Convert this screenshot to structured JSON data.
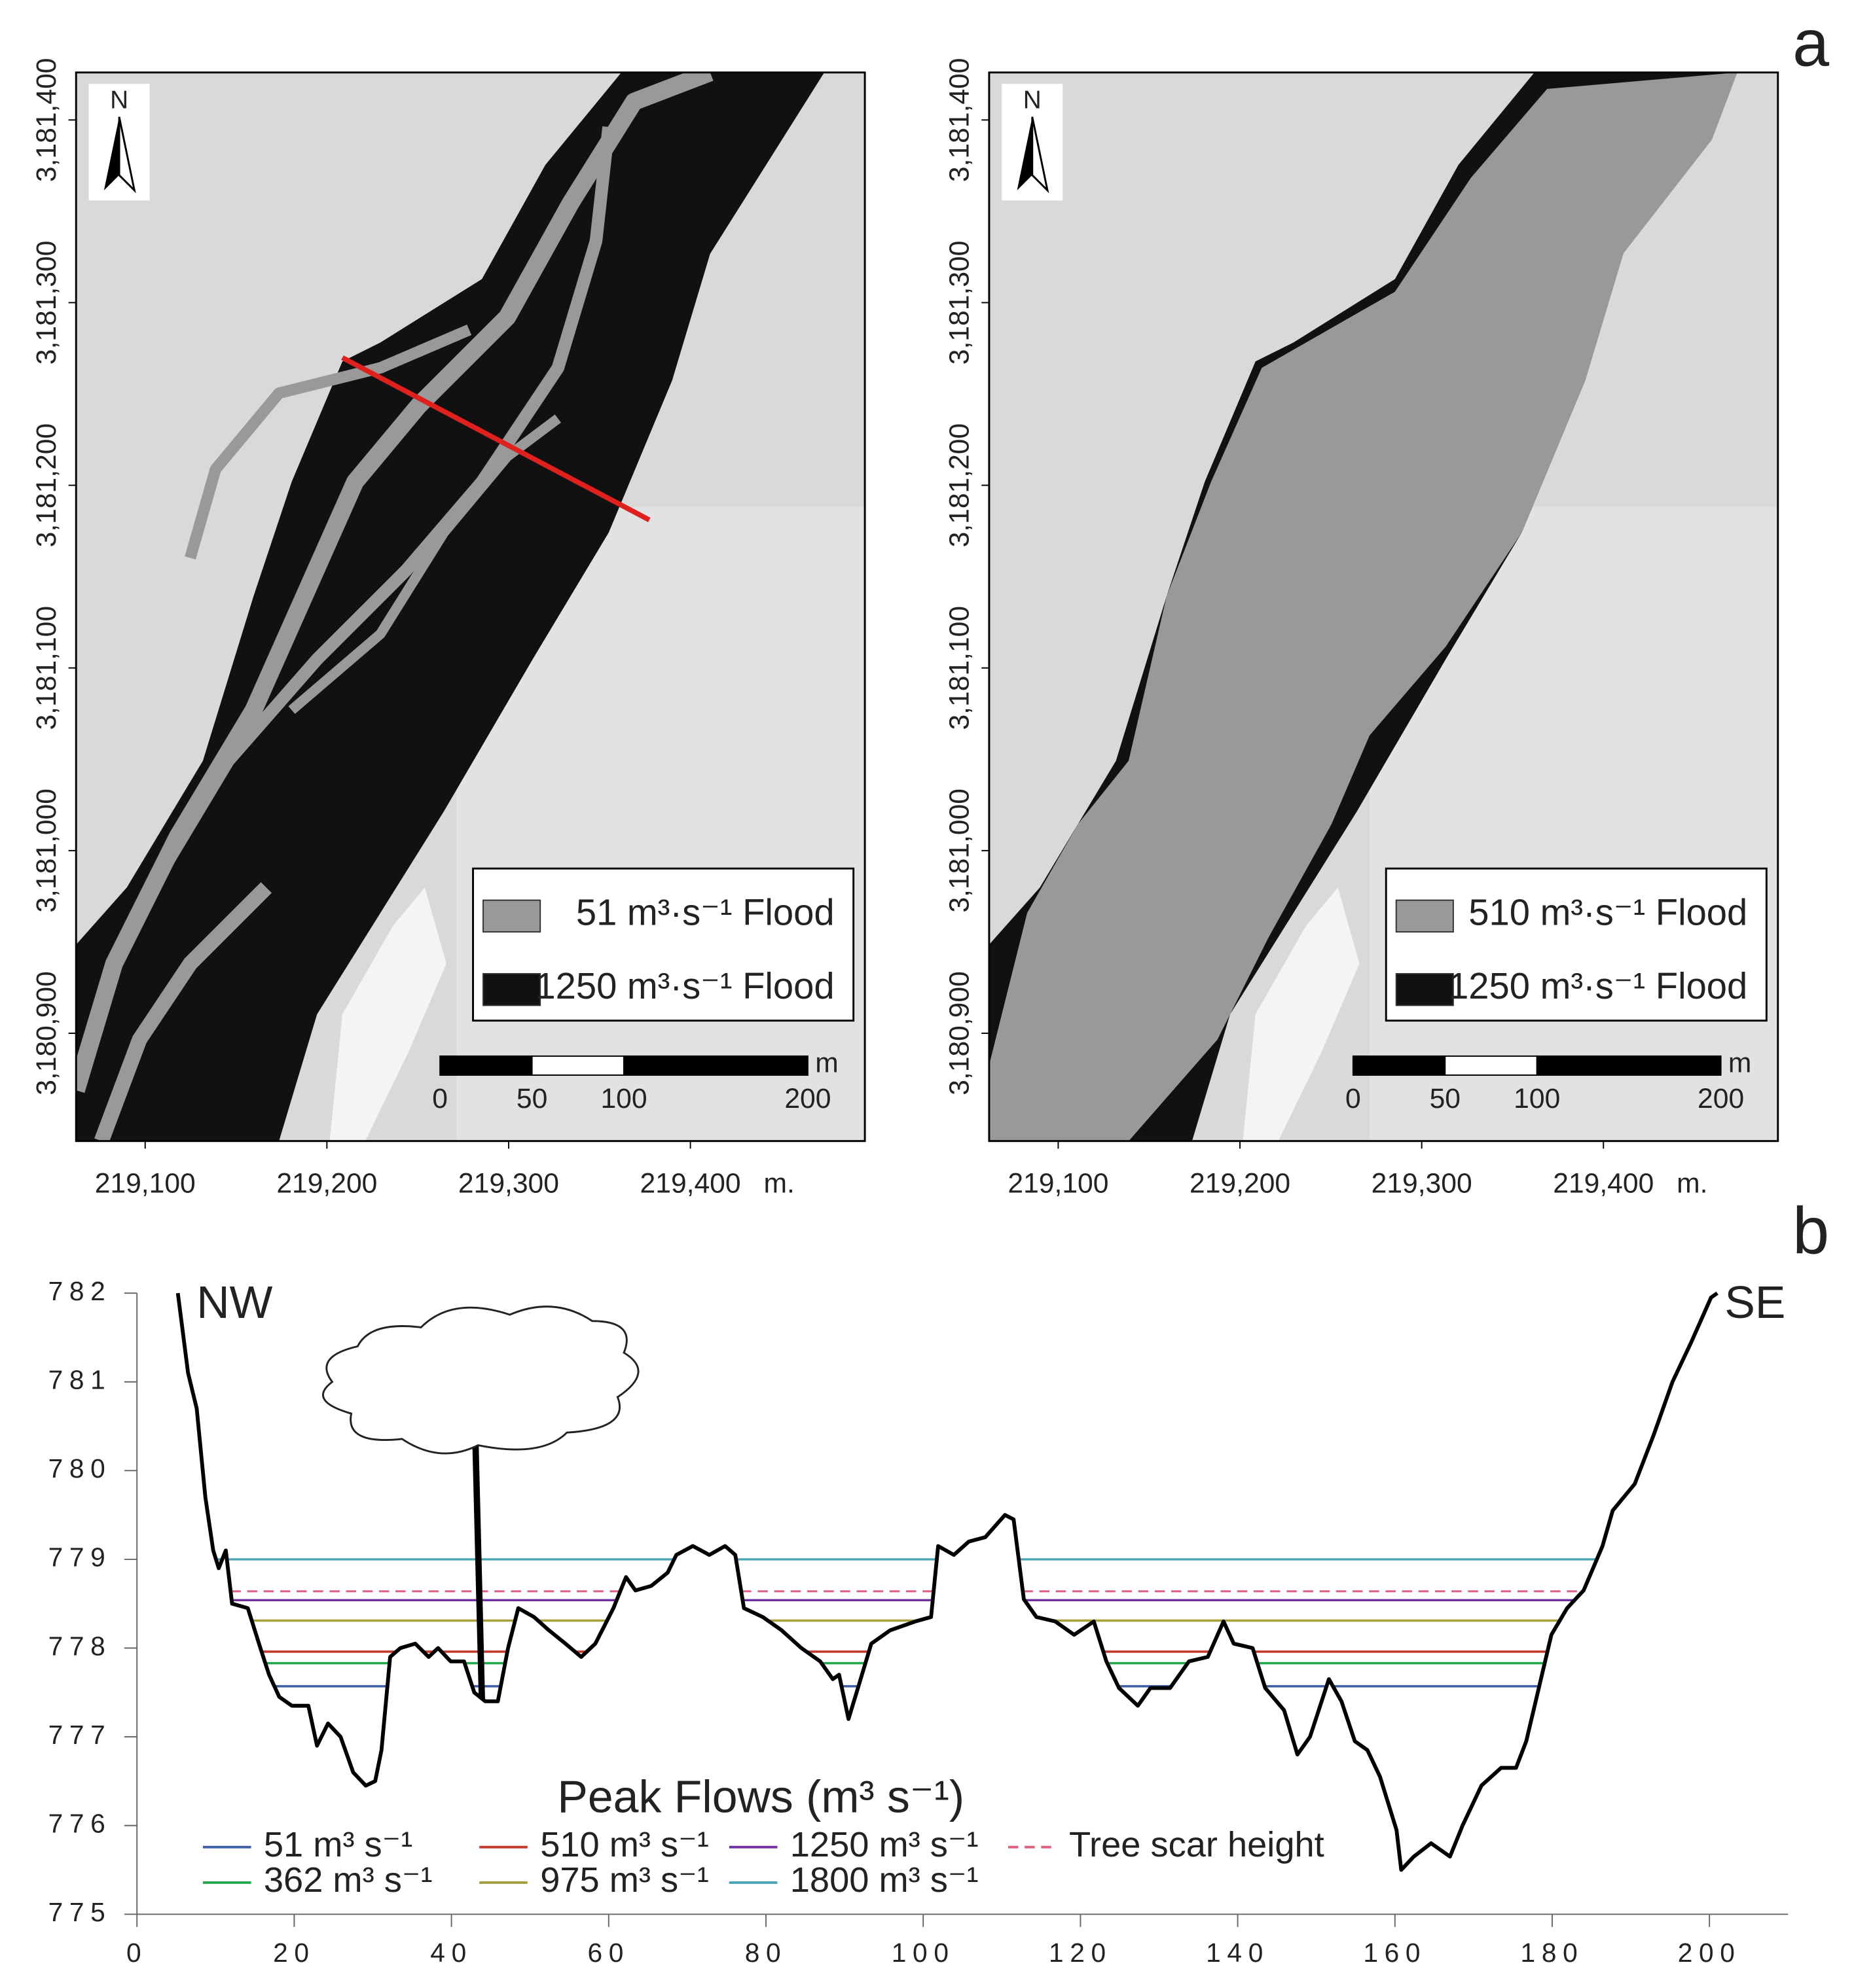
{
  "panel_labels": [
    "a",
    "b"
  ],
  "maps": [
    {
      "xlim": [
        219062,
        219496
      ],
      "ylim": [
        3180841,
        3181426
      ],
      "xticks": [
        {
          "value": 219100,
          "label": "219,100"
        },
        {
          "value": 219200,
          "label": "219,200"
        },
        {
          "value": 219300,
          "label": "219,300"
        },
        {
          "value": 219400,
          "label": "219,400"
        }
      ],
      "yticks": [
        {
          "value": 3180900,
          "label": "3,180,900"
        },
        {
          "value": 3181000,
          "label": "3,181,000"
        },
        {
          "value": 3181100,
          "label": "3,181,100"
        },
        {
          "value": 3181200,
          "label": "3,181,200"
        },
        {
          "value": 3181300,
          "label": "3,181,300"
        },
        {
          "value": 3181400,
          "label": "3,181,400"
        }
      ],
      "x_unit": "m.",
      "north": "N",
      "legend": [
        "51 m³·s⁻¹ Flood",
        "1250 m³·s⁻¹ Flood"
      ],
      "legend_colors": [
        "#999999",
        "#111111"
      ],
      "scale_bar": {
        "ticks": [
          0,
          50,
          100,
          200
        ],
        "unit": "m"
      }
    },
    {
      "xlim": [
        219062,
        219496
      ],
      "ylim": [
        3180841,
        3181426
      ],
      "xticks": [
        {
          "value": 219100,
          "label": "219,100"
        },
        {
          "value": 219200,
          "label": "219,200"
        },
        {
          "value": 219300,
          "label": "219,300"
        },
        {
          "value": 219400,
          "label": "219,400"
        }
      ],
      "yticks": [
        {
          "value": 3180900,
          "label": "3,180,900"
        },
        {
          "value": 3181000,
          "label": "3,181,000"
        },
        {
          "value": 3181100,
          "label": "3,181,100"
        },
        {
          "value": 3181200,
          "label": "3,181,200"
        },
        {
          "value": 3181300,
          "label": "3,181,300"
        },
        {
          "value": 3181400,
          "label": "3,181,400"
        }
      ],
      "x_unit": "m.",
      "north": "N",
      "legend": [
        "510 m³·s⁻¹ Flood",
        "1250 m³·s⁻¹ Flood"
      ],
      "legend_colors": [
        "#999999",
        "#111111"
      ],
      "scale_bar": {
        "ticks": [
          0,
          50,
          100,
          200
        ],
        "unit": "m"
      }
    }
  ],
  "chart_data": {
    "type": "line",
    "annotations": [
      "NW",
      "SE"
    ],
    "legend_title": "Peak Flows (m³ s⁻¹)",
    "xlim": [
      0,
      210
    ],
    "ylim": [
      775,
      782
    ],
    "xticks": [
      0,
      20,
      40,
      60,
      80,
      100,
      120,
      140,
      160,
      180,
      200
    ],
    "yticks": [
      775,
      776,
      777,
      778,
      779,
      780,
      781,
      782
    ],
    "color": "#000000",
    "x": [
      5.2,
      6.5,
      7.6,
      8.7,
      9.7,
      10.4,
      11.3,
      12.1,
      14.1,
      15.7,
      16.8,
      18.1,
      19.7,
      21.8,
      22.9,
      24.3,
      25.9,
      27.5,
      29.1,
      30.3,
      31.1,
      32.2,
      33.5,
      35.4,
      37.1,
      38.3,
      39.9,
      41.6,
      42.9,
      44.3,
      45.9,
      47.2,
      48.5,
      50.5,
      52.4,
      54.5,
      56.5,
      58.3,
      60.6,
      62.2,
      63.4,
      65.4,
      67.5,
      68.6,
      70.7,
      72.8,
      74.8,
      76.1,
      77.2,
      79.6,
      82.0,
      84.5,
      86.9,
      88.5,
      89.3,
      90.5,
      91.7,
      93.4,
      95.8,
      99.0,
      101.0,
      101.9,
      103.9,
      105.8,
      107.9,
      110.4,
      111.5,
      112.8,
      114.4,
      116.8,
      119.2,
      121.7,
      123.3,
      124.9,
      127.3,
      128.9,
      131.4,
      133.8,
      136.2,
      138.2,
      139.5,
      141.9,
      143.5,
      145.9,
      147.6,
      149.2,
      151.6,
      153.2,
      154.9,
      156.5,
      158.1,
      160.2,
      160.8,
      162.4,
      164.6,
      167.0,
      168.6,
      171.0,
      173.5,
      175.4,
      176.7,
      178.3,
      179.9,
      181.9,
      184.0,
      186.4,
      187.7,
      190.5,
      192.9,
      195.3,
      197.7,
      200.2,
      201.0
    ],
    "values": [
      782,
      781.1,
      780.7,
      779.7,
      779.1,
      778.9,
      779.1,
      778.5,
      778.45,
      778.0,
      777.7,
      777.45,
      777.35,
      777.35,
      776.9,
      777.15,
      777.0,
      776.6,
      776.45,
      776.5,
      776.85,
      777.9,
      778.0,
      778.05,
      777.9,
      778.0,
      777.85,
      777.85,
      777.5,
      777.4,
      777.4,
      778.0,
      778.45,
      778.35,
      778.2,
      778.05,
      777.9,
      778.05,
      778.45,
      778.8,
      778.65,
      778.7,
      778.85,
      779.05,
      779.15,
      779.05,
      779.15,
      779.05,
      778.45,
      778.35,
      778.2,
      778.0,
      777.85,
      777.65,
      777.7,
      777.2,
      777.55,
      778.05,
      778.2,
      778.3,
      778.35,
      779.15,
      779.05,
      779.2,
      779.25,
      779.5,
      779.45,
      778.55,
      778.35,
      778.3,
      778.15,
      778.3,
      777.85,
      777.55,
      777.35,
      777.55,
      777.55,
      777.85,
      777.9,
      778.3,
      778.05,
      778.0,
      777.55,
      777.3,
      776.8,
      777.0,
      777.65,
      777.4,
      776.95,
      776.85,
      776.55,
      775.95,
      775.5,
      775.65,
      775.8,
      775.65,
      776.0,
      776.45,
      776.65,
      776.65,
      776.95,
      777.55,
      778.15,
      778.45,
      778.65,
      779.15,
      779.55,
      779.85,
      780.4,
      781.0,
      781.45,
      781.95,
      782
    ],
    "levels": [
      {
        "name": "51 m³ s⁻¹",
        "color": "#3b5ea6",
        "value": 777.57
      },
      {
        "name": "362 m³ s⁻¹",
        "color": "#23a84b",
        "value": 777.83
      },
      {
        "name": "510 m³ s⁻¹",
        "color": "#c0392b",
        "value": 777.96
      },
      {
        "name": "975 m³ s⁻¹",
        "color": "#a59f3c",
        "value": 778.31
      },
      {
        "name": "1250 m³ s⁻¹",
        "color": "#7030a0",
        "value": 778.54
      },
      {
        "name": "1800 m³ s⁻¹",
        "color": "#4aa6b6",
        "value": 779.0
      },
      {
        "name": "Tree scar height",
        "color": "#e06080",
        "value": 778.64,
        "dashed": true
      }
    ]
  }
}
